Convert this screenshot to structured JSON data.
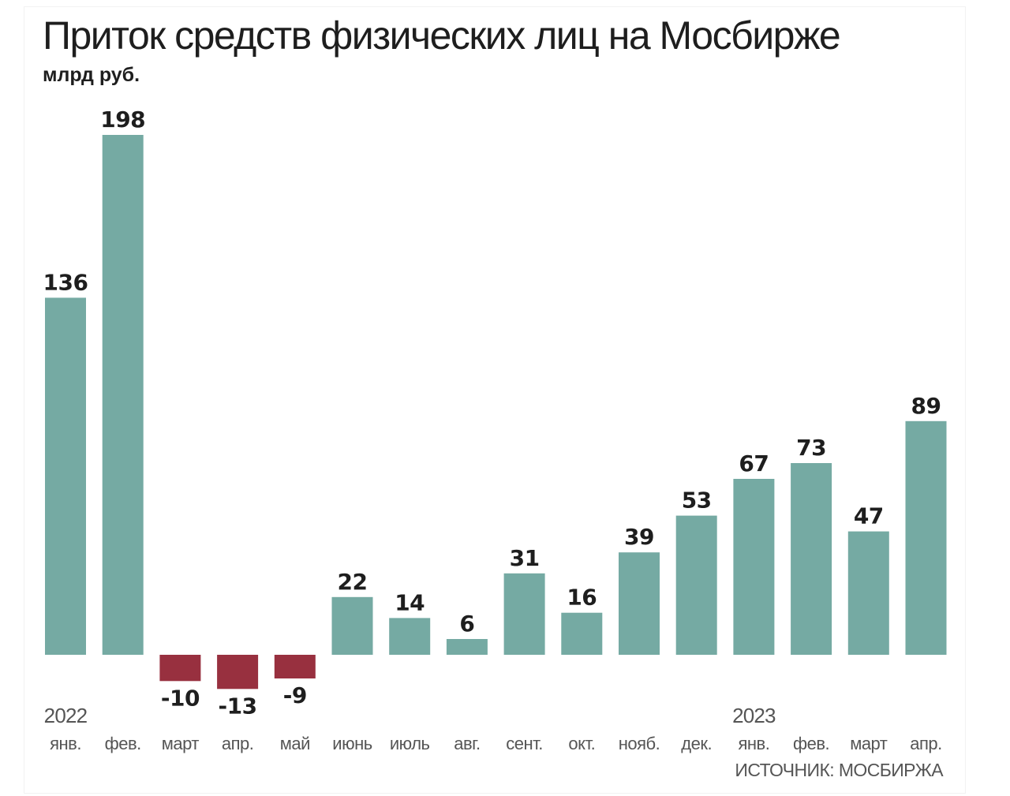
{
  "chart_data": {
    "type": "bar",
    "title": "Приток средств физических лиц на Мосбирже",
    "subtitle": "млрд руб.",
    "source": "ИСТОЧНИК: МОСБИРЖА",
    "categories": [
      "янв.",
      "фев.",
      "март",
      "апр.",
      "май",
      "июнь",
      "июль",
      "авг.",
      "сент.",
      "окт.",
      "нояб.",
      "дек.",
      "янв.",
      "фев.",
      "март",
      "апр."
    ],
    "year_labels": [
      {
        "index": 0,
        "label": "2022"
      },
      {
        "index": 12,
        "label": "2023"
      }
    ],
    "values": [
      136,
      198,
      -10,
      -13,
      -9,
      22,
      14,
      6,
      31,
      16,
      39,
      53,
      67,
      73,
      47,
      89
    ],
    "ylim": [
      -13,
      198
    ],
    "grid": false,
    "legend": "none",
    "colors": {
      "positive": "#75aaa3",
      "negative": "#98303f",
      "labels": "#1e1e1e",
      "axis_text": "#555555"
    }
  }
}
